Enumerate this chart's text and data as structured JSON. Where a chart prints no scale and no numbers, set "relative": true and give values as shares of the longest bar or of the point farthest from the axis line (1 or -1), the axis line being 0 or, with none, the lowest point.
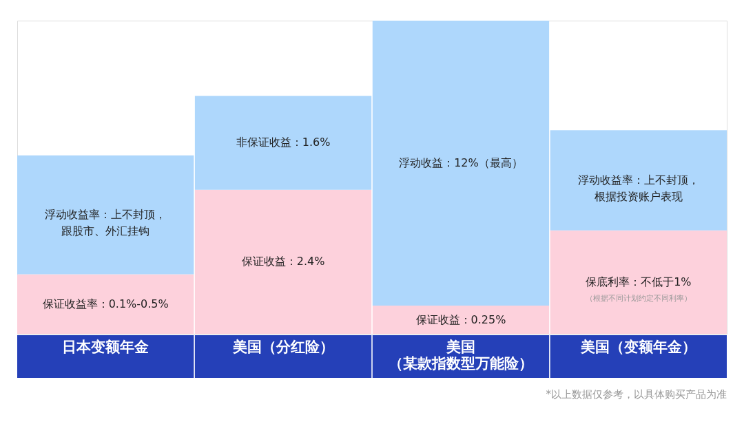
{
  "chart_data": {
    "type": "bar",
    "stacked": true,
    "relative": true,
    "grid": false,
    "categories": [
      "日本变额年金",
      "美国（分红险）",
      "美国（某款指数型万能险）",
      "美国（变额年金）"
    ],
    "series": [
      {
        "color": "#fdd1dc",
        "values": [
          0.19,
          0.46,
          0.09,
          0.33
        ]
      },
      {
        "color": "#aed7fc",
        "values": [
          0.38,
          0.3,
          0.91,
          0.32
        ]
      }
    ],
    "annotations": [
      "保证收益率：0.1%-0.5%",
      "保证收益：2.4%",
      "保证收益：0.25%",
      "保底利率：不低于1%",
      "浮动收益率：上不封顶，跟股市、外汇挂钩",
      "非保证收益：1.6%",
      "浮动收益：12%（最高）",
      "浮动收益率：上不封顶，根据投资账户表现",
      "（根据不同计划约定不同利率）",
      "*以上数据仅参考，以具体购买产品为准"
    ]
  }
}
